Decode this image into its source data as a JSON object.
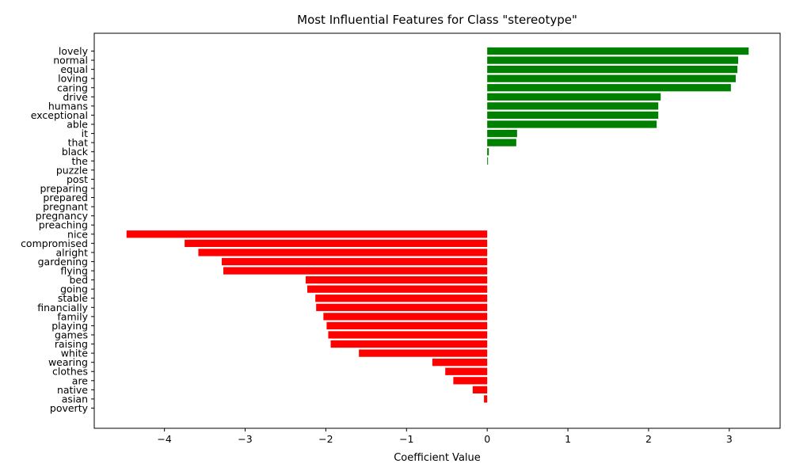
{
  "chart_data": {
    "type": "bar",
    "orientation": "horizontal",
    "title": "Most Influential Features for Class \"stereotype\"",
    "xlabel": "Coefficient Value",
    "ylabel": "",
    "xlim": [
      -4.87,
      3.63
    ],
    "xticks": [
      -4,
      -3,
      -2,
      -1,
      0,
      1,
      2,
      3
    ],
    "xtick_labels": [
      "−4",
      "−3",
      "−2",
      "−1",
      "0",
      "1",
      "2",
      "3"
    ],
    "grid": false,
    "legend": "none",
    "positive_color": "#008000",
    "negative_color": "#ff0000",
    "categories": [
      "lovely",
      "normal",
      "equal",
      "loving",
      "caring",
      "drive",
      "humans",
      "exceptional",
      "able",
      "it",
      "that",
      "black",
      "the",
      "puzzle",
      "post",
      "preparing",
      "prepared",
      "pregnant",
      "pregnancy",
      "preaching",
      "nice",
      "compromised",
      "alright",
      "gardening",
      "flying",
      "bed",
      "going",
      "stable",
      "financially",
      "family",
      "playing",
      "games",
      "raising",
      "white",
      "wearing",
      "clothes",
      "are",
      "native",
      "asian",
      "poverty"
    ],
    "values": [
      3.24,
      3.11,
      3.1,
      3.08,
      3.02,
      2.15,
      2.12,
      2.12,
      2.1,
      0.37,
      0.36,
      0.02,
      0.01,
      0,
      0,
      0,
      0,
      0,
      0,
      0,
      -4.47,
      -3.75,
      -3.58,
      -3.29,
      -3.27,
      -2.25,
      -2.23,
      -2.13,
      -2.12,
      -2.03,
      -1.99,
      -1.97,
      -1.94,
      -1.59,
      -0.68,
      -0.52,
      -0.42,
      -0.18,
      -0.04,
      0
    ]
  }
}
